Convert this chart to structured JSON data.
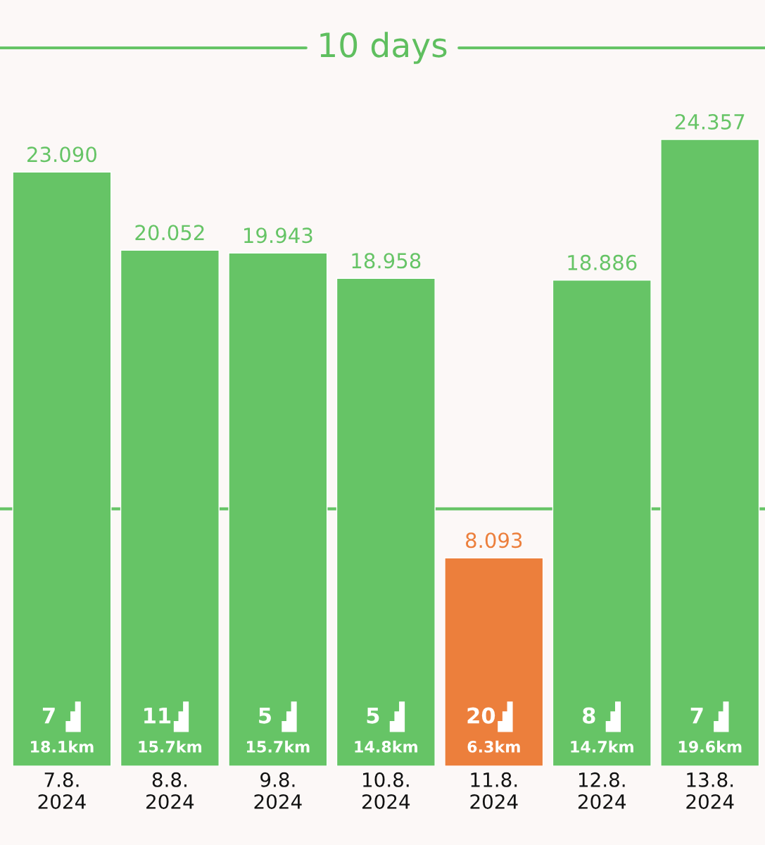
{
  "chart_data": {
    "type": "bar",
    "title": "10 days",
    "categories": [
      "7.8.\n2024",
      "8.8.\n2024",
      "9.8.\n2024",
      "10.8.\n2024",
      "11.8.\n2024",
      "12.8.\n2024",
      "13.8.\n2024"
    ],
    "values": [
      23.09,
      20.052,
      19.943,
      18.958,
      8.093,
      18.886,
      24.357
    ],
    "value_labels": [
      "23.090",
      "20.052",
      "19.943",
      "18.958",
      "8.093",
      "18.886",
      "24.357"
    ],
    "colors": [
      "#66c466",
      "#66c466",
      "#66c466",
      "#66c466",
      "#ec7f3c",
      "#66c466",
      "#66c466"
    ],
    "ref_lines": [
      {
        "axis": "y",
        "value": 10,
        "color": "#66c466"
      }
    ],
    "annotations": [
      "7",
      "18.1km",
      "11",
      "15.7km",
      "5",
      "15.7km",
      "5",
      "14.8km",
      "20",
      "6.3km",
      "8",
      "14.7km",
      "7",
      "19.6km"
    ],
    "tick_labels": "x",
    "grid": false,
    "legend": false
  }
}
